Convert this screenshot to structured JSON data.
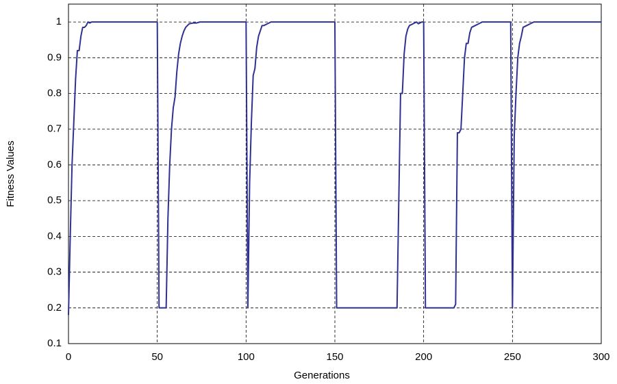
{
  "chart_data": {
    "type": "line",
    "x_label": "Generations",
    "y_label": "Fitness Values",
    "x": [
      0,
      1,
      2,
      3,
      4,
      5,
      6,
      7,
      8,
      9,
      10,
      11,
      12,
      13,
      15,
      50,
      51,
      55,
      56,
      57,
      58,
      59,
      60,
      61,
      62,
      63,
      64,
      65,
      66,
      67,
      68,
      70,
      72,
      74,
      100,
      101,
      102,
      103,
      104,
      105,
      106,
      107,
      108,
      109,
      110,
      112,
      114,
      150,
      151,
      185,
      186,
      187,
      188,
      189,
      190,
      191,
      192,
      194,
      196,
      197,
      199,
      200,
      201,
      217,
      218,
      219,
      220,
      221,
      222,
      223,
      224,
      225,
      226,
      227,
      229,
      231,
      233,
      249,
      250,
      251,
      252,
      253,
      254,
      255,
      256,
      258,
      260,
      262,
      264,
      300
    ],
    "series": [
      {
        "color": "#2e3192",
        "values": [
          0.18,
          0.4,
          0.6,
          0.72,
          0.84,
          0.92,
          0.92,
          0.96,
          0.985,
          0.985,
          0.99,
          1,
          0.997,
          1,
          1,
          1,
          0.2,
          0.2,
          0.45,
          0.6,
          0.7,
          0.76,
          0.79,
          0.86,
          0.91,
          0.94,
          0.96,
          0.975,
          0.985,
          0.99,
          0.995,
          0.997,
          0.997,
          1,
          1,
          0.2,
          0.55,
          0.72,
          0.85,
          0.87,
          0.93,
          0.96,
          0.975,
          0.99,
          0.99,
          0.995,
          1,
          1,
          0.2,
          0.2,
          0.5,
          0.8,
          0.8,
          0.91,
          0.96,
          0.98,
          0.99,
          0.995,
          1,
          0.995,
          1,
          1,
          0.2,
          0.2,
          0.21,
          0.69,
          0.69,
          0.7,
          0.8,
          0.9,
          0.94,
          0.94,
          0.97,
          0.985,
          0.99,
          0.995,
          1,
          1,
          0.2,
          0.68,
          0.8,
          0.9,
          0.94,
          0.96,
          0.985,
          0.99,
          0.995,
          1,
          1,
          1
        ]
      }
    ],
    "xlim": [
      0,
      300
    ],
    "xticks": [
      0,
      50,
      100,
      150,
      200,
      250,
      300
    ],
    "ylim": [
      0.1,
      1.05
    ],
    "yticks": [
      0.1,
      0.2,
      0.3,
      0.4,
      0.5,
      0.6,
      0.7,
      0.8,
      0.9,
      1
    ],
    "grid": true
  }
}
